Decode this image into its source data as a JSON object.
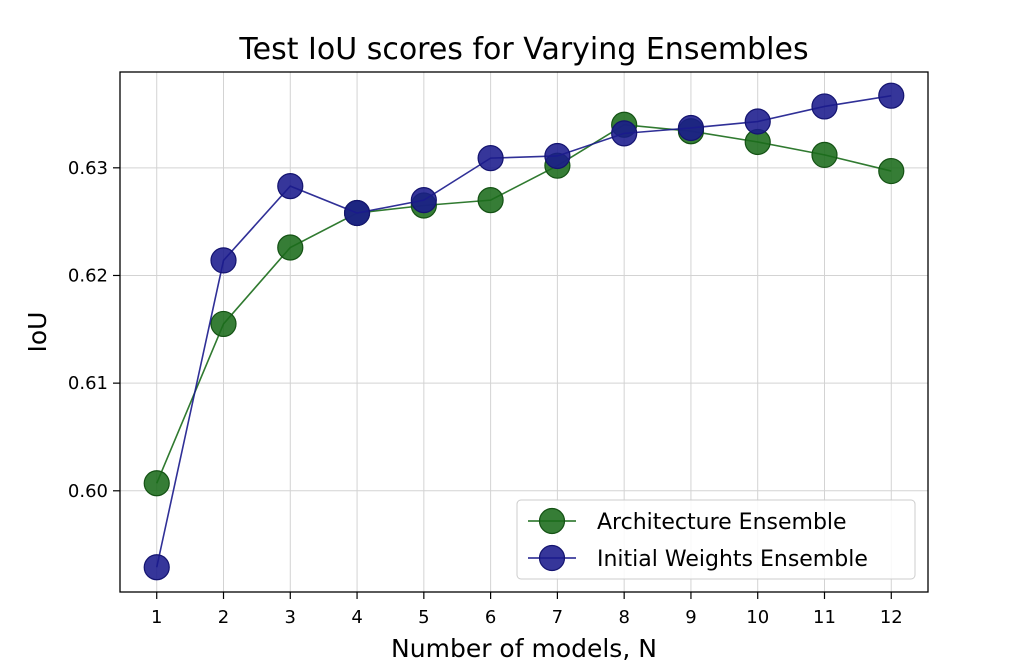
{
  "chart_data": {
    "type": "line",
    "title": "Test IoU scores for Varying Ensembles",
    "xlabel": "Number of models, N",
    "ylabel": "IoU",
    "x": [
      1,
      2,
      3,
      4,
      5,
      6,
      7,
      8,
      9,
      10,
      11,
      12
    ],
    "xlim": [
      0.45,
      12.55
    ],
    "ylim": [
      0.5906,
      0.6389
    ],
    "yticks": [
      0.6,
      0.61,
      0.62,
      0.63
    ],
    "ytick_labels": [
      "0.60",
      "0.61",
      "0.62",
      "0.63"
    ],
    "grid": true,
    "legend_position": "lower-right",
    "series": [
      {
        "name": "Architecture Ensemble",
        "color": "#1a6b1a",
        "edge_color": "#145214",
        "values": [
          0.6007,
          0.6155,
          0.6226,
          0.6258,
          0.6265,
          0.627,
          0.6302,
          0.634,
          0.6334,
          0.6324,
          0.6312,
          0.6297
        ]
      },
      {
        "name": "Initial Weights Ensemble",
        "color": "#1a1a8c",
        "edge_color": "#141470",
        "values": [
          0.5929,
          0.6214,
          0.6283,
          0.6258,
          0.627,
          0.6309,
          0.6311,
          0.6332,
          0.6337,
          0.6343,
          0.6357,
          0.6367
        ]
      }
    ]
  }
}
